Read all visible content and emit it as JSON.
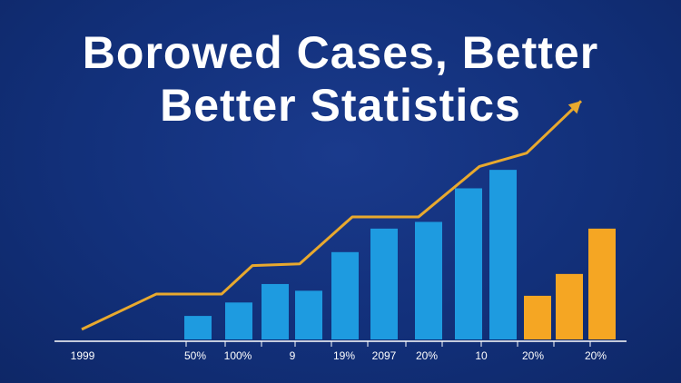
{
  "title_line1": "Borowed Cases, Better",
  "title_line2": "Better Statistics",
  "colors": {
    "background": "#12307a",
    "bar_blue": "#1e9be0",
    "bar_orange": "#f5a623",
    "trend_line": "#e8a92e",
    "axis": "#ffffff"
  },
  "chart_data": {
    "type": "bar",
    "title": "Borowed Cases, Better Better Statistics",
    "xlabel": "",
    "ylabel": "",
    "x_tick_labels": [
      "1999",
      "50%",
      "100%",
      "9",
      "19%",
      "2097",
      "20%",
      "10",
      "20%",
      "20%"
    ],
    "ylim": [
      0,
      100
    ],
    "grid": false,
    "bars": [
      {
        "value": 14,
        "color": "blue"
      },
      {
        "value": 22,
        "color": "blue"
      },
      {
        "value": 33,
        "color": "blue"
      },
      {
        "value": 29,
        "color": "blue"
      },
      {
        "value": 52,
        "color": "blue"
      },
      {
        "value": 66,
        "color": "blue"
      },
      {
        "value": 70,
        "color": "blue"
      },
      {
        "value": 90,
        "color": "blue"
      },
      {
        "value": 101,
        "color": "blue"
      },
      {
        "value": 26,
        "color": "orange"
      },
      {
        "value": 39,
        "color": "orange"
      },
      {
        "value": 66,
        "color": "orange"
      }
    ],
    "trend_line": [
      6,
      27,
      27,
      44,
      45,
      73,
      73,
      103,
      111,
      142
    ]
  }
}
